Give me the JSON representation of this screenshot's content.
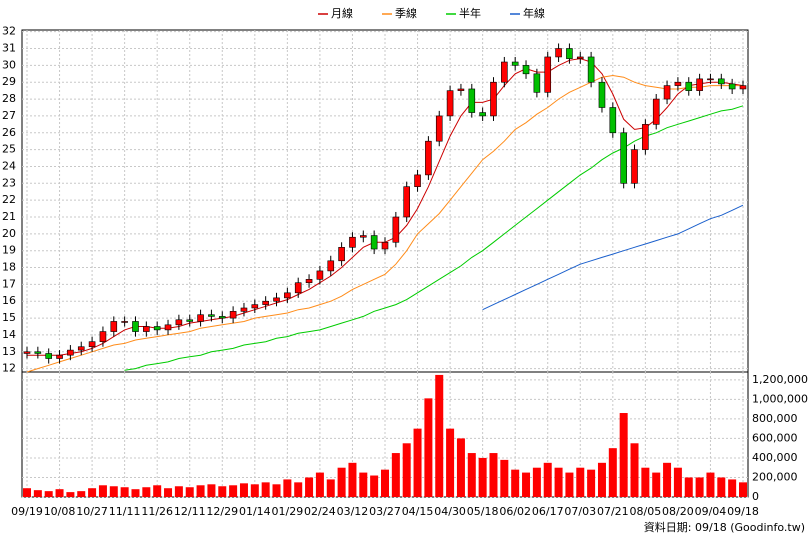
{
  "chart_data": {
    "type": "candlestick",
    "categories": [
      "09/19",
      null,
      null,
      "10/08",
      null,
      null,
      "10/27",
      null,
      null,
      "11/11",
      null,
      null,
      "11/26",
      null,
      null,
      "12/11",
      null,
      null,
      "12/29",
      null,
      null,
      "01/14",
      null,
      null,
      "01/29",
      null,
      null,
      "02/24",
      null,
      null,
      "03/12",
      null,
      null,
      "03/27",
      null,
      null,
      "04/15",
      null,
      null,
      "04/30",
      null,
      null,
      "05/18",
      null,
      null,
      "06/02",
      null,
      null,
      "06/17",
      null,
      null,
      "07/03",
      null,
      null,
      "07/21",
      null,
      null,
      "08/05",
      null,
      null,
      "08/20",
      null,
      null,
      "09/04",
      null,
      null,
      "09/18"
    ],
    "open": [
      12.9,
      13.0,
      12.9,
      12.6,
      12.8,
      13.1,
      13.3,
      13.6,
      14.2,
      14.8,
      14.8,
      14.2,
      14.5,
      14.3,
      14.6,
      14.9,
      14.8,
      15.2,
      15.1,
      15.0,
      15.4,
      15.6,
      15.8,
      16.0,
      16.2,
      16.5,
      17.1,
      17.3,
      17.8,
      18.4,
      19.2,
      19.8,
      19.9,
      19.1,
      19.5,
      21.0,
      22.8,
      23.5,
      25.5,
      27.0,
      28.5,
      28.6,
      27.2,
      27.0,
      29.0,
      30.2,
      30.0,
      29.5,
      28.4,
      30.5,
      31.0,
      30.4,
      30.5,
      29.0,
      27.5,
      26.0,
      23.0,
      25.0,
      26.5,
      28.0,
      28.8,
      29.0,
      28.5,
      29.2,
      29.2,
      28.9,
      28.6
    ],
    "high": [
      13.3,
      13.3,
      13.2,
      13.1,
      13.4,
      13.6,
      13.9,
      14.5,
      15.1,
      15.1,
      15.1,
      14.8,
      14.8,
      14.9,
      15.2,
      15.2,
      15.5,
      15.5,
      15.4,
      15.7,
      15.9,
      16.1,
      16.3,
      16.5,
      16.8,
      17.4,
      17.6,
      18.1,
      18.7,
      19.5,
      20.1,
      20.2,
      20.2,
      19.8,
      21.3,
      23.1,
      23.8,
      25.8,
      27.3,
      28.8,
      28.9,
      28.9,
      27.5,
      29.3,
      30.5,
      30.5,
      30.3,
      29.8,
      30.8,
      31.3,
      31.3,
      30.8,
      30.8,
      29.3,
      27.8,
      26.3,
      25.3,
      26.8,
      28.3,
      29.1,
      29.3,
      29.3,
      29.5,
      29.5,
      29.5,
      29.2,
      29.1
    ],
    "low": [
      12.6,
      12.6,
      12.3,
      12.3,
      12.5,
      12.8,
      13.0,
      13.3,
      13.9,
      14.5,
      13.9,
      13.9,
      14.0,
      14.0,
      14.3,
      14.5,
      14.5,
      14.8,
      14.7,
      14.7,
      15.1,
      15.3,
      15.5,
      15.7,
      15.9,
      16.2,
      16.8,
      17.0,
      17.5,
      18.1,
      18.9,
      19.5,
      18.8,
      18.8,
      19.2,
      20.7,
      22.5,
      23.2,
      25.2,
      26.7,
      28.2,
      26.9,
      26.7,
      26.7,
      28.7,
      29.7,
      29.2,
      28.1,
      28.1,
      30.2,
      30.1,
      30.1,
      28.7,
      27.2,
      25.7,
      22.7,
      22.7,
      24.7,
      26.2,
      27.7,
      28.5,
      28.2,
      28.2,
      28.9,
      28.6,
      28.3,
      28.3
    ],
    "close": [
      13.0,
      12.9,
      12.6,
      12.8,
      13.1,
      13.3,
      13.6,
      14.2,
      14.8,
      14.8,
      14.2,
      14.5,
      14.3,
      14.6,
      14.9,
      14.8,
      15.2,
      15.1,
      15.0,
      15.4,
      15.6,
      15.8,
      16.0,
      16.2,
      16.5,
      17.1,
      17.3,
      17.8,
      18.4,
      19.2,
      19.8,
      19.9,
      19.1,
      19.5,
      21.0,
      22.8,
      23.5,
      25.5,
      27.0,
      28.5,
      28.6,
      27.2,
      27.0,
      29.0,
      30.2,
      30.0,
      29.5,
      28.4,
      30.5,
      31.0,
      30.4,
      30.5,
      29.0,
      27.5,
      26.0,
      23.0,
      25.0,
      26.5,
      28.0,
      28.8,
      29.0,
      28.5,
      29.2,
      29.2,
      28.9,
      28.6,
      28.8
    ],
    "up_color": "#ff0000",
    "down_color": "#00c000",
    "series": [
      {
        "name": "月線",
        "color": "#cc0000",
        "values": [
          12.8,
          12.8,
          12.8,
          12.8,
          12.9,
          13.0,
          13.2,
          13.5,
          13.9,
          14.3,
          14.5,
          14.5,
          14.4,
          14.4,
          14.5,
          14.7,
          14.8,
          14.9,
          15.0,
          15.1,
          15.3,
          15.5,
          15.7,
          15.9,
          16.1,
          16.4,
          16.7,
          17.1,
          17.5,
          18.0,
          18.6,
          19.2,
          19.5,
          19.5,
          19.8,
          20.5,
          21.5,
          22.8,
          24.3,
          25.8,
          27.0,
          27.8,
          27.8,
          28.0,
          28.8,
          29.5,
          29.8,
          29.6,
          29.6,
          30.0,
          30.3,
          30.4,
          30.2,
          29.5,
          28.3,
          26.8,
          26.2,
          26.3,
          26.8,
          27.5,
          28.3,
          28.8,
          28.9,
          29.0,
          29.0,
          28.9,
          28.8
        ]
      },
      {
        "name": "季線",
        "color": "#ff8c1a",
        "values": [
          11.8,
          12.0,
          12.2,
          12.4,
          12.6,
          12.8,
          13.0,
          13.2,
          13.4,
          13.5,
          13.7,
          13.8,
          13.9,
          14.0,
          14.1,
          14.2,
          14.4,
          14.5,
          14.6,
          14.7,
          14.8,
          15.0,
          15.1,
          15.2,
          15.3,
          15.5,
          15.6,
          15.8,
          16.0,
          16.3,
          16.7,
          17.0,
          17.3,
          17.6,
          18.2,
          19.0,
          20.0,
          20.6,
          21.2,
          22.0,
          22.8,
          23.6,
          24.4,
          24.9,
          25.5,
          26.2,
          26.6,
          27.1,
          27.5,
          28.0,
          28.4,
          28.7,
          29.0,
          29.3,
          29.4,
          29.3,
          29.0,
          28.8,
          28.7,
          28.6,
          28.6,
          28.7,
          28.7,
          28.8,
          28.8,
          28.8,
          28.8
        ]
      },
      {
        "name": "半年",
        "color": "#00cc00",
        "values": [
          null,
          null,
          null,
          null,
          null,
          null,
          null,
          null,
          null,
          11.9,
          12.0,
          12.2,
          12.3,
          12.4,
          12.6,
          12.7,
          12.8,
          13.0,
          13.1,
          13.2,
          13.4,
          13.5,
          13.6,
          13.8,
          13.9,
          14.1,
          14.2,
          14.3,
          14.5,
          14.7,
          14.9,
          15.1,
          15.4,
          15.6,
          15.8,
          16.1,
          16.5,
          16.9,
          17.3,
          17.7,
          18.1,
          18.6,
          19.0,
          19.5,
          20.0,
          20.5,
          21.0,
          21.5,
          22.0,
          22.5,
          23.0,
          23.5,
          23.9,
          24.4,
          24.8,
          25.1,
          25.5,
          25.8,
          26.0,
          26.3,
          26.5,
          26.7,
          26.9,
          27.1,
          27.3,
          27.4,
          27.6
        ]
      },
      {
        "name": "年線",
        "color": "#1a5fcc",
        "values": [
          null,
          null,
          null,
          null,
          null,
          null,
          null,
          null,
          null,
          null,
          null,
          null,
          null,
          null,
          null,
          null,
          null,
          null,
          null,
          null,
          null,
          null,
          null,
          null,
          null,
          null,
          null,
          null,
          null,
          null,
          null,
          null,
          null,
          null,
          null,
          null,
          null,
          null,
          null,
          null,
          null,
          null,
          15.5,
          15.8,
          16.1,
          16.4,
          16.7,
          17.0,
          17.3,
          17.6,
          17.9,
          18.2,
          18.4,
          18.6,
          18.8,
          19.0,
          19.2,
          19.4,
          19.6,
          19.8,
          20.0,
          20.3,
          20.6,
          20.9,
          21.1,
          21.4,
          21.7
        ]
      }
    ],
    "ylim": [
      11.8,
      32.1
    ],
    "yticks": [
      12,
      13,
      14,
      15,
      16,
      17,
      18,
      19,
      20,
      21,
      22,
      23,
      24,
      25,
      26,
      27,
      28,
      29,
      30,
      31,
      32
    ],
    "grid": true,
    "volume": {
      "color": "#ff0000",
      "values": [
        90000,
        70000,
        60000,
        80000,
        50000,
        60000,
        90000,
        120000,
        110000,
        100000,
        80000,
        100000,
        120000,
        90000,
        110000,
        100000,
        120000,
        130000,
        110000,
        120000,
        140000,
        130000,
        150000,
        130000,
        180000,
        150000,
        200000,
        250000,
        180000,
        300000,
        350000,
        250000,
        220000,
        280000,
        450000,
        550000,
        700000,
        1010000,
        1250000,
        700000,
        600000,
        450000,
        400000,
        450000,
        380000,
        280000,
        250000,
        300000,
        350000,
        300000,
        250000,
        300000,
        280000,
        350000,
        500000,
        860000,
        550000,
        300000,
        250000,
        350000,
        300000,
        200000,
        200000,
        250000,
        200000,
        180000,
        150000
      ],
      "ylim": [
        0,
        1280000
      ],
      "yticks": [
        0,
        {
          "value": 200000,
          "label": "200,000"
        },
        {
          "value": 400000,
          "label": "400,000"
        },
        {
          "value": 600000,
          "label": "600,000"
        },
        {
          "value": 800000,
          "label": "800,000"
        },
        {
          "value": 1000000,
          "label": "1,000,000"
        },
        {
          "value": 1200000,
          "label": "1,200,000"
        }
      ]
    },
    "footer": "資料日期: 09/18 (Goodinfo.tw)"
  }
}
